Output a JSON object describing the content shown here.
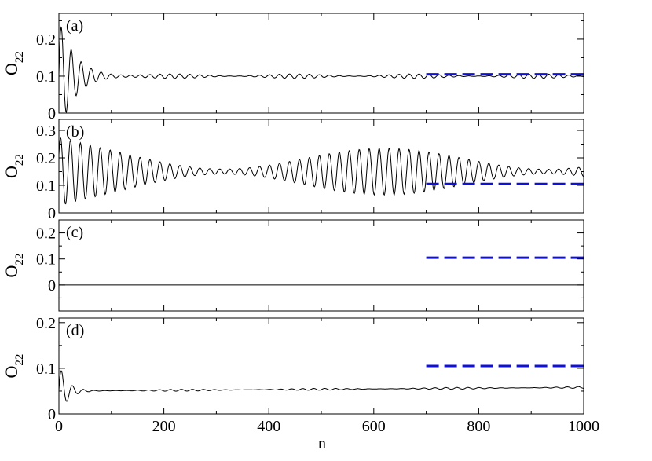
{
  "figure": {
    "xlabel": "n",
    "ylabel_main": "O",
    "ylabel_sub": "22"
  },
  "chart_data": [
    {
      "type": "line",
      "panel_label": "(a)",
      "xlim": [
        0,
        1000
      ],
      "ylim": [
        0,
        0.27
      ],
      "yticks": [
        0,
        0.1,
        0.2
      ],
      "ytick_labels": [
        "0",
        "0.1",
        "0.2"
      ],
      "xticks": [
        0,
        200,
        400,
        600,
        800,
        1000
      ],
      "xtick_labels": [],
      "series": [
        {
          "style": "solid",
          "color": "#000000",
          "model": {
            "base": 0.1,
            "transient_amp": 0.15,
            "transient_decay": 30,
            "fast_period": 19,
            "osc_amp": 0.006,
            "beat_period": 230,
            "phase": 0.3
          }
        },
        {
          "style": "dashed",
          "color": "#1010dd",
          "x": [
            700,
            1000
          ],
          "y": [
            0.105,
            0.105
          ]
        }
      ]
    },
    {
      "type": "line",
      "panel_label": "(b)",
      "xlim": [
        0,
        1000
      ],
      "ylim": [
        0,
        0.34
      ],
      "yticks": [
        0,
        0.1,
        0.2,
        0.3
      ],
      "ytick_labels": [
        "0",
        "0.1",
        "0.2",
        "0.3"
      ],
      "xticks": [
        0,
        200,
        400,
        600,
        800,
        1000
      ],
      "xtick_labels": [],
      "series": [
        {
          "style": "solid",
          "color": "#000000",
          "model": {
            "base": 0.15,
            "transient_amp": 0.05,
            "transient_decay": 80,
            "fast_period": 19,
            "osc_amp": 0.085,
            "beat_period": 620,
            "phase": 0.0
          }
        },
        {
          "style": "dashed",
          "color": "#1010dd",
          "x": [
            700,
            1000
          ],
          "y": [
            0.105,
            0.105
          ]
        }
      ]
    },
    {
      "type": "line",
      "panel_label": "(c)",
      "xlim": [
        0,
        1000
      ],
      "ylim": [
        -0.1,
        0.25
      ],
      "yticks": [
        0,
        0.1,
        0.2
      ],
      "ytick_labels": [
        "0",
        "0.1",
        "0.2"
      ],
      "xticks": [
        0,
        200,
        400,
        600,
        800,
        1000
      ],
      "xtick_labels": [],
      "series": [
        {
          "style": "solid",
          "color": "#000000",
          "x": [
            0,
            1000
          ],
          "y": [
            0,
            0
          ]
        },
        {
          "style": "dashed",
          "color": "#1010dd",
          "x": [
            700,
            1000
          ],
          "y": [
            0.105,
            0.105
          ]
        }
      ]
    },
    {
      "type": "line",
      "panel_label": "(d)",
      "xlim": [
        0,
        1000
      ],
      "ylim": [
        0,
        0.21
      ],
      "yticks": [
        0,
        0.1,
        0.2
      ],
      "ytick_labels": [
        "0",
        "0.1",
        "0.2"
      ],
      "xticks": [
        0,
        200,
        400,
        600,
        800,
        1000
      ],
      "xtick_labels": [
        "0",
        "200",
        "400",
        "600",
        "800",
        "1000"
      ],
      "series": [
        {
          "style": "solid",
          "color": "#000000",
          "model": {
            "base": 0.05,
            "trend": 0.008,
            "transient_amp": 0.06,
            "transient_decay": 15,
            "fast_period": 21,
            "osc_amp": 0.002,
            "beat_period": 260,
            "phase": 0.7
          }
        },
        {
          "style": "dashed",
          "color": "#1010dd",
          "x": [
            700,
            1000
          ],
          "y": [
            0.105,
            0.105
          ]
        }
      ]
    }
  ]
}
